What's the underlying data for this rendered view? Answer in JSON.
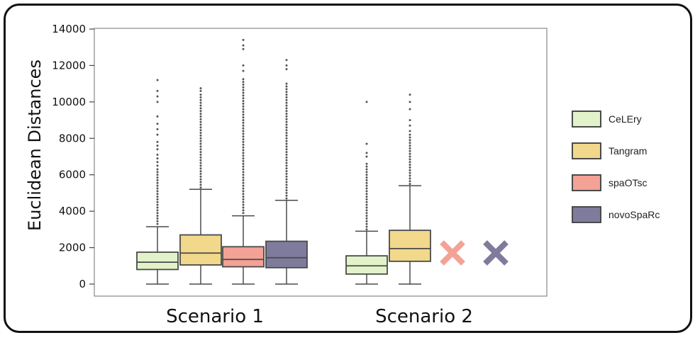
{
  "chart_data": {
    "type": "box",
    "ylabel": "Euclidean Distances",
    "xlabel": "",
    "ylim": [
      -700,
      14000
    ],
    "yticks": [
      0,
      2000,
      4000,
      6000,
      8000,
      10000,
      12000,
      14000
    ],
    "grid": false,
    "legend_position": "right",
    "categories": [
      "Scenario 1",
      "Scenario 2"
    ],
    "series": [
      {
        "name": "CeLEry",
        "color": "#e2f3c9",
        "boxes": [
          {
            "category": "Scenario 1",
            "whisker_low": 0,
            "q1": 800,
            "median": 1200,
            "q3": 1750,
            "whisker_high": 3150,
            "outliers": [
              3300,
              3450,
              3600,
              3750,
              3900,
              4050,
              4200,
              4350,
              4500,
              4650,
              4800,
              4950,
              5100,
              5250,
              5400,
              5550,
              5700,
              5850,
              6000,
              6150,
              6300,
              6500,
              6700,
              6900,
              7100,
              7400,
              7600,
              7800,
              8200,
              8500,
              8800,
              9200,
              10000,
              10300,
              10600,
              11200
            ]
          },
          {
            "category": "Scenario 2",
            "whisker_low": 0,
            "q1": 550,
            "median": 1000,
            "q3": 1550,
            "whisker_high": 2900,
            "outliers": [
              3000,
              3150,
              3300,
              3450,
              3600,
              3750,
              3900,
              4050,
              4200,
              4350,
              4500,
              4650,
              4800,
              4950,
              5100,
              5250,
              5400,
              5550,
              5700,
              5850,
              6000,
              6150,
              6300,
              6450,
              6600,
              7000,
              7200,
              7700,
              10000
            ]
          }
        ]
      },
      {
        "name": "Tangram",
        "color": "#f1d88b",
        "boxes": [
          {
            "category": "Scenario 1",
            "whisker_low": 0,
            "q1": 1050,
            "median": 1700,
            "q3": 2700,
            "whisker_high": 5200,
            "outliers": [
              5300,
              5450,
              5600,
              5750,
              5900,
              6050,
              6200,
              6350,
              6500,
              6650,
              6800,
              6950,
              7100,
              7250,
              7400,
              7550,
              7700,
              7850,
              8000,
              8150,
              8300,
              8450,
              8600,
              8750,
              8900,
              9050,
              9200,
              9350,
              9500,
              9650,
              9800,
              9950,
              10100,
              10250,
              10400,
              10600,
              10750
            ]
          },
          {
            "category": "Scenario 2",
            "whisker_low": 0,
            "q1": 1250,
            "median": 1950,
            "q3": 2950,
            "whisker_high": 5400,
            "outliers": [
              5500,
              5650,
              5800,
              5950,
              6100,
              6250,
              6400,
              6550,
              6700,
              6850,
              7000,
              7150,
              7300,
              7450,
              7600,
              7750,
              7900,
              8050,
              8200,
              8400,
              8700,
              9000,
              9600,
              10000,
              10400
            ]
          }
        ]
      },
      {
        "name": "spaOTsc",
        "color": "#f3a295",
        "boxes": [
          {
            "category": "Scenario 1",
            "whisker_low": 0,
            "q1": 950,
            "median": 1350,
            "q3": 2050,
            "whisker_high": 3750,
            "outliers": [
              3900,
              4050,
              4200,
              4350,
              4500,
              4650,
              4800,
              4950,
              5100,
              5250,
              5400,
              5550,
              5700,
              5850,
              6000,
              6150,
              6300,
              6450,
              6600,
              6750,
              6900,
              7050,
              7200,
              7350,
              7500,
              7650,
              7800,
              7950,
              8100,
              8250,
              8400,
              8550,
              8700,
              8850,
              9000,
              9150,
              9300,
              9450,
              9600,
              9750,
              9900,
              10050,
              10200,
              10350,
              10500,
              10650,
              10800,
              10950,
              11100,
              11250,
              11700,
              12000,
              12900,
              13100,
              13400
            ]
          },
          {
            "category": "Scenario 2",
            "missing": true
          }
        ]
      },
      {
        "name": "novoSpaRc",
        "color": "#7e7b9c",
        "boxes": [
          {
            "category": "Scenario 1",
            "whisker_low": 0,
            "q1": 900,
            "median": 1450,
            "q3": 2350,
            "whisker_high": 4600,
            "outliers": [
              4700,
              4850,
              5000,
              5150,
              5300,
              5450,
              5600,
              5750,
              5900,
              6050,
              6200,
              6350,
              6500,
              6650,
              6800,
              6950,
              7100,
              7250,
              7400,
              7550,
              7700,
              7850,
              8000,
              8150,
              8300,
              8450,
              8600,
              8750,
              8900,
              9050,
              9200,
              9350,
              9500,
              9650,
              9800,
              9950,
              10100,
              10250,
              10400,
              10550,
              10700,
              10850,
              11000,
              11800,
              12000,
              12300
            ]
          },
          {
            "category": "Scenario 2",
            "missing": true
          }
        ]
      }
    ]
  }
}
